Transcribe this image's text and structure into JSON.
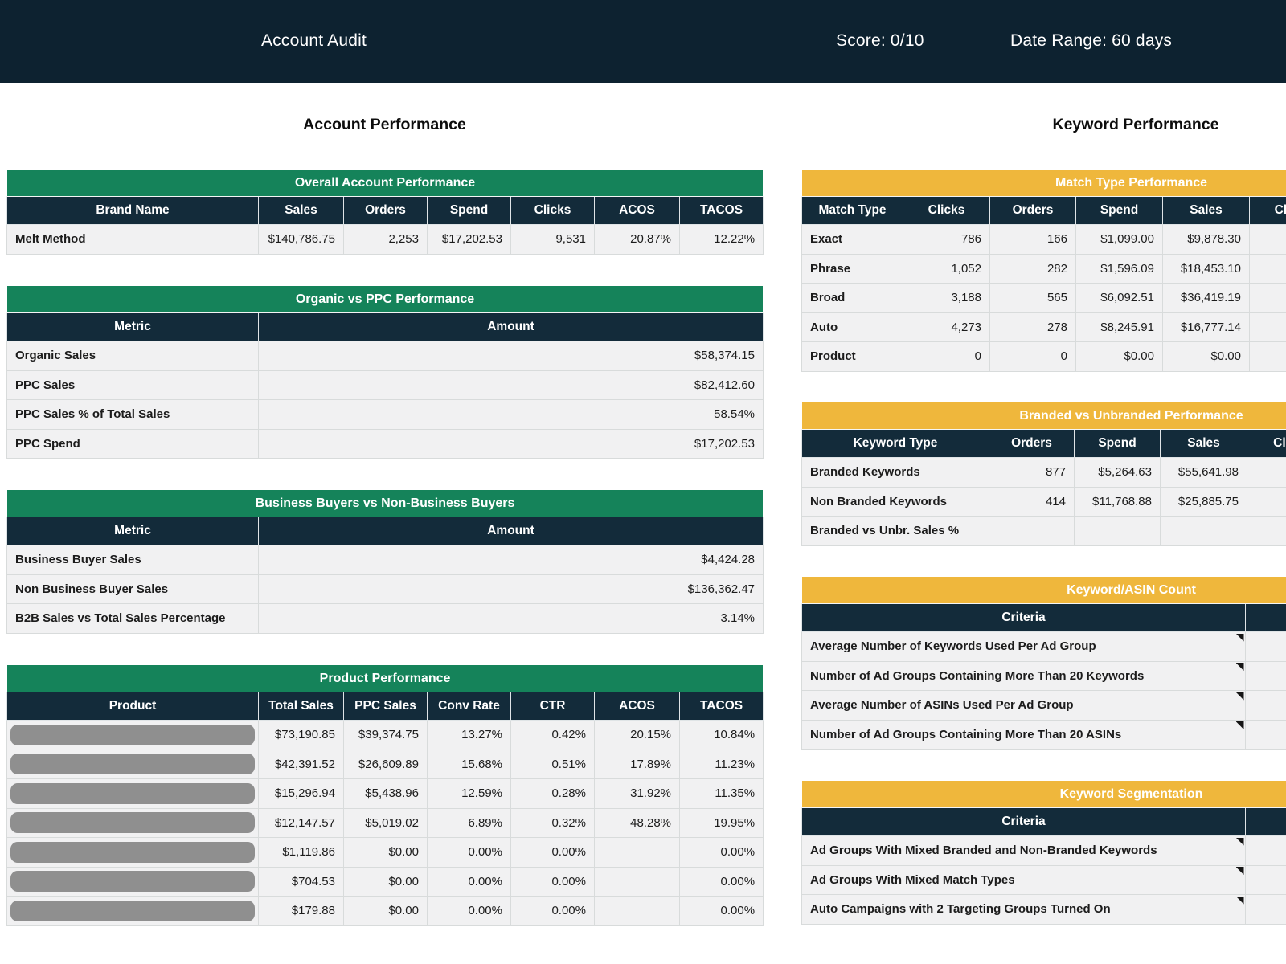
{
  "topbar": {
    "title": "Account Audit",
    "score": "Score: 0/10",
    "date_range": "Date Range: 60 days"
  },
  "colors": {
    "topbar_navy": "#0d2230",
    "header_navy": "#132b3a",
    "green": "#15835a",
    "gold": "#efb73c",
    "row_bg": "#f1f1f2",
    "border": "#d8dbdb",
    "redaction_pill": "#8f8f8f"
  },
  "left": {
    "heading": "Account Performance",
    "overall": {
      "title": "Overall Account Performance",
      "columns": [
        "Brand Name",
        "Sales",
        "Orders",
        "Spend",
        "Clicks",
        "ACOS",
        "TACOS"
      ],
      "rows": [
        [
          "Melt Method",
          "$140,786.75",
          "2,253",
          "$17,202.53",
          "9,531",
          "20.87%",
          "12.22%"
        ]
      ]
    },
    "organic": {
      "title": "Organic vs PPC Performance",
      "columns": [
        "Metric",
        "Amount"
      ],
      "rows": [
        [
          "Organic Sales",
          "$58,374.15"
        ],
        [
          "PPC Sales",
          "$82,412.60"
        ],
        [
          "PPC Sales % of Total Sales",
          "58.54%"
        ],
        [
          "PPC Spend",
          "$17,202.53"
        ]
      ]
    },
    "buyers": {
      "title": "Business Buyers vs Non-Business Buyers",
      "columns": [
        "Metric",
        "Amount"
      ],
      "rows": [
        [
          "Business Buyer Sales",
          "$4,424.28"
        ],
        [
          "Non Business Buyer Sales",
          "$136,362.47"
        ],
        [
          "B2B Sales vs Total Sales Percentage",
          "3.14%"
        ]
      ]
    },
    "products": {
      "title": "Product Performance",
      "columns": [
        "Product",
        "Total Sales",
        "PPC Sales",
        "Conv Rate",
        "CTR",
        "ACOS",
        "TACOS"
      ],
      "rows": [
        [
          null,
          "$73,190.85",
          "$39,374.75",
          "13.27%",
          "0.42%",
          "20.15%",
          "10.84%"
        ],
        [
          null,
          "$42,391.52",
          "$26,609.89",
          "15.68%",
          "0.51%",
          "17.89%",
          "11.23%"
        ],
        [
          null,
          "$15,296.94",
          "$5,438.96",
          "12.59%",
          "0.28%",
          "31.92%",
          "11.35%"
        ],
        [
          null,
          "$12,147.57",
          "$5,019.02",
          "6.89%",
          "0.32%",
          "48.28%",
          "19.95%"
        ],
        [
          null,
          "$1,119.86",
          "$0.00",
          "0.00%",
          "0.00%",
          "",
          "0.00%"
        ],
        [
          null,
          "$704.53",
          "$0.00",
          "0.00%",
          "0.00%",
          "",
          "0.00%"
        ],
        [
          null,
          "$179.88",
          "$0.00",
          "0.00%",
          "0.00%",
          "",
          "0.00%"
        ]
      ]
    }
  },
  "right": {
    "heading": "Keyword Performance",
    "match_type": {
      "title": "Match Type Performance",
      "columns": [
        "Match Type",
        "Clicks",
        "Orders",
        "Spend",
        "Sales",
        "Clicks"
      ],
      "rows": [
        [
          "Exact",
          "786",
          "166",
          "$1,099.00",
          "$9,878.30",
          ""
        ],
        [
          "Phrase",
          "1,052",
          "282",
          "$1,596.09",
          "$18,453.10",
          ""
        ],
        [
          "Broad",
          "3,188",
          "565",
          "$6,092.51",
          "$36,419.19",
          ""
        ],
        [
          "Auto",
          "4,273",
          "278",
          "$8,245.91",
          "$16,777.14",
          ""
        ],
        [
          "Product",
          "0",
          "0",
          "$0.00",
          "$0.00",
          ""
        ]
      ]
    },
    "branded": {
      "title": "Branded vs Unbranded Performance",
      "columns": [
        "Keyword Type",
        "Orders",
        "Spend",
        "Sales",
        "Clicks"
      ],
      "rows": [
        [
          "Branded Keywords",
          "877",
          "$5,264.63",
          "$55,641.98",
          ""
        ],
        [
          "Non Branded Keywords",
          "414",
          "$11,768.88",
          "$25,885.75",
          ""
        ],
        [
          "Branded vs Unbr. Sales %",
          "",
          "",
          "",
          ""
        ]
      ]
    },
    "asin_count": {
      "title": "Keyword/ASIN Count",
      "columns": [
        "Criteria",
        ""
      ],
      "rows": [
        [
          "Average Number of Keywords Used Per Ad Group",
          ""
        ],
        [
          "Number of Ad Groups Containing More Than 20 Keywords",
          ""
        ],
        [
          "Average Number of ASINs Used Per Ad Group",
          ""
        ],
        [
          "Number of Ad Groups Containing More Than 20 ASINs",
          ""
        ]
      ]
    },
    "segmentation": {
      "title": "Keyword Segmentation",
      "columns": [
        "Criteria",
        ""
      ],
      "rows": [
        [
          "Ad Groups With Mixed Branded and Non-Branded Keywords",
          ""
        ],
        [
          "Ad Groups With Mixed Match Types",
          ""
        ],
        [
          "Auto Campaigns with 2 Targeting Groups Turned On",
          ""
        ]
      ]
    }
  }
}
